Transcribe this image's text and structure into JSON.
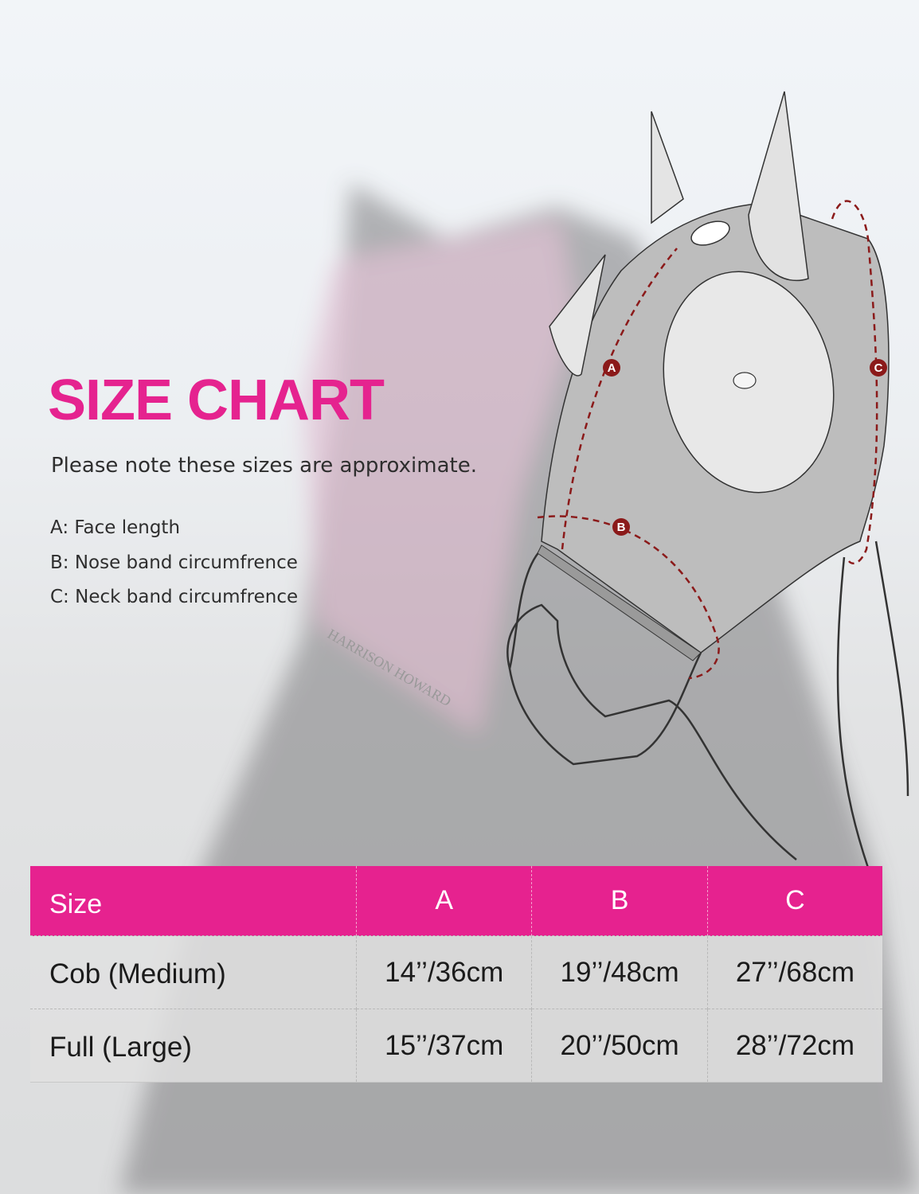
{
  "title": "SIZE CHART",
  "note": "Please note these sizes are approximate.",
  "legend": [
    "A: Face length",
    "B: Nose band circumfrence",
    "C: Neck band circumfrence"
  ],
  "diagram_markers": [
    "A",
    "B",
    "C"
  ],
  "watermark_text": "HARRISON HOWARD",
  "colors": {
    "accent": "#e6228f",
    "marker": "#8b1a1a"
  },
  "table": {
    "headers": [
      "Size",
      "A",
      "B",
      "C"
    ],
    "rows": [
      [
        "Cob (Medium)",
        "14’’/36cm",
        "19’’/48cm",
        "27’’/68cm"
      ],
      [
        "Full (Large)",
        "15’’/37cm",
        "20’’/50cm",
        "28’’/72cm"
      ]
    ]
  }
}
